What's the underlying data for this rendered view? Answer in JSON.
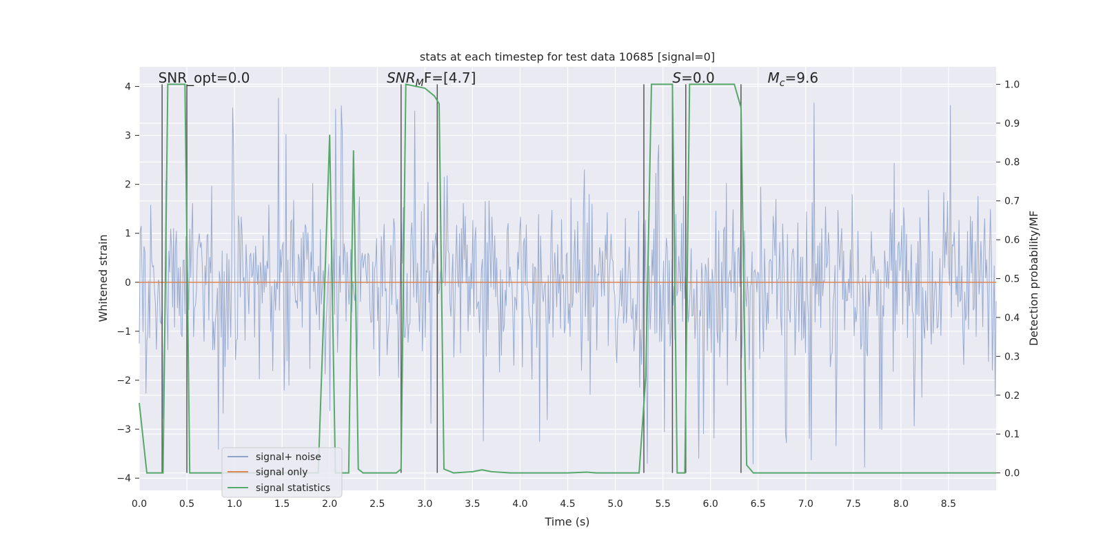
{
  "chart_data": {
    "type": "line",
    "title": "stats at each timestep for test data 10685 [signal=0]",
    "xlabel": "Time (s)",
    "ylabel": "Whitened strain",
    "ylabel_right": "Detection probability/MF",
    "xlim": [
      0.0,
      9.0
    ],
    "ylim": [
      -4.25,
      4.4
    ],
    "ylim_right": [
      -0.045,
      1.045
    ],
    "x_ticks": [
      "0.0",
      "0.5",
      "1.0",
      "1.5",
      "2.0",
      "2.5",
      "3.0",
      "3.5",
      "4.0",
      "4.5",
      "5.0",
      "5.5",
      "6.0",
      "6.5",
      "7.0",
      "7.5",
      "8.0",
      "8.5"
    ],
    "y_ticks": [
      "4",
      "3",
      "2",
      "1",
      "0",
      "−1",
      "−2",
      "−3",
      "−4"
    ],
    "y_ticks_right": [
      "1.0",
      "0.9",
      "0.8",
      "0.7",
      "0.6",
      "0.5",
      "0.4",
      "0.3",
      "0.2",
      "0.1",
      "0.0"
    ],
    "grid": true,
    "legend_position": "lower-left",
    "annotations": [
      {
        "text": "SNR_opt=0.0",
        "x": 0.2,
        "y": 4.05
      },
      {
        "text": "F=[4.7]",
        "prefix": "SNR",
        "sub": "M",
        "x": 2.6,
        "y": 4.05,
        "italic_prefix": true
      },
      {
        "text": "=0.0",
        "prefix": "S",
        "x": 5.6,
        "y": 4.05,
        "italic_prefix": true
      },
      {
        "text": "=9.6",
        "prefix": "M",
        "sub": "c",
        "x": 6.6,
        "y": 4.05,
        "italic_prefix": true
      }
    ],
    "series": [
      {
        "name": "signal+ noise",
        "color": "#8ea3cc",
        "description_visible": "noisy whitened strain, amplitude mostly within about ±2, spikes to about ±3.8",
        "envelope": {
          "typical_abs": 2.0,
          "max_abs": 3.8,
          "n_points": 900
        }
      },
      {
        "name": "signal only",
        "color": "#dd8452",
        "x": [
          0.0,
          9.0
        ],
        "y": [
          0.0,
          0.0
        ]
      },
      {
        "name": "signal statistics",
        "color": "#55a868",
        "axis": "right",
        "x": [
          0.0,
          0.08,
          0.25,
          0.3,
          0.48,
          0.53,
          0.6,
          1.0,
          1.5,
          1.88,
          1.95,
          2.0,
          2.06,
          2.2,
          2.25,
          2.3,
          2.35,
          2.5,
          2.7,
          2.75,
          2.8,
          3.0,
          3.1,
          3.15,
          3.2,
          3.3,
          3.5,
          3.6,
          3.7,
          3.9,
          4.5,
          4.7,
          4.8,
          5.0,
          5.25,
          5.32,
          5.38,
          5.5,
          5.6,
          5.65,
          5.73,
          5.78,
          5.85,
          6.0,
          6.25,
          6.32,
          6.38,
          6.45,
          7.0,
          8.0,
          9.0
        ],
        "y": [
          0.18,
          0.0,
          0.0,
          1.0,
          1.0,
          0.0,
          0.0,
          0.0,
          0.0,
          0.0,
          0.5,
          0.87,
          0.0,
          0.0,
          0.83,
          0.01,
          0.0,
          0.0,
          0.0,
          0.01,
          1.0,
          0.99,
          0.97,
          0.95,
          0.01,
          0.0,
          0.003,
          0.008,
          0.003,
          0.0,
          0.0,
          0.002,
          0.0,
          0.0,
          0.0,
          0.25,
          1.0,
          1.0,
          1.0,
          0.0,
          0.0,
          1.0,
          1.0,
          1.0,
          1.0,
          0.94,
          0.02,
          0.0,
          0.0,
          0.0,
          0.0
        ]
      }
    ],
    "markers": {
      "color": "#555555",
      "x": [
        0.24,
        0.5,
        2.75,
        3.13,
        5.3,
        5.6,
        5.74,
        6.32
      ]
    }
  }
}
